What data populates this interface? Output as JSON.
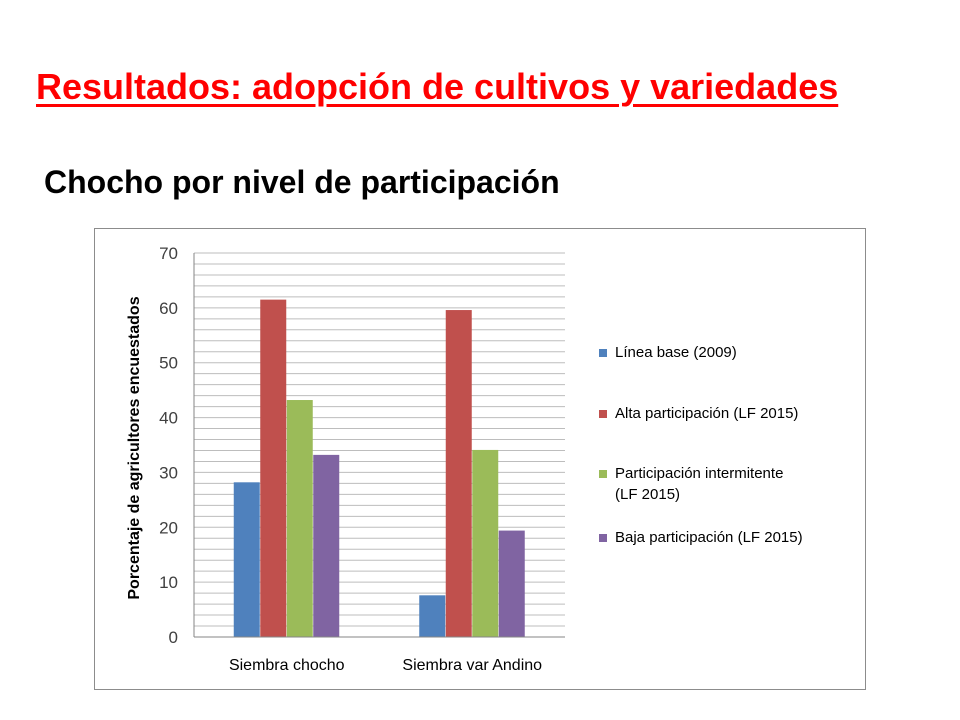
{
  "slide": {
    "title": "Resultados: adopción de cultivos y variedades",
    "subtitle": "Chocho por nivel de participación"
  },
  "chart_data": {
    "type": "bar",
    "title": "",
    "xlabel": "",
    "ylabel": "Porcentaje de agricultores encuestados",
    "ylim": [
      0,
      70
    ],
    "yticks": [
      0,
      10,
      20,
      30,
      40,
      50,
      60,
      70
    ],
    "grid": true,
    "legend_position": "right",
    "categories": [
      "Siembra chocho",
      "Siembra var Andino"
    ],
    "series": [
      {
        "name": "Línea base (2009)",
        "color": "#4f81bd",
        "values": [
          28.2,
          7.6
        ]
      },
      {
        "name": "Alta participación (LF 2015)",
        "color": "#c0504d",
        "values": [
          61.5,
          59.6
        ]
      },
      {
        "name": "Participación intermitente (LF 2015)",
        "legend_lines": [
          "Participación intermitente",
          "(LF 2015)"
        ],
        "color": "#9bbb59",
        "values": [
          43.2,
          34.1
        ]
      },
      {
        "name": "Baja participación (LF 2015)",
        "color": "#8064a2",
        "values": [
          33.2,
          19.4
        ]
      }
    ]
  }
}
